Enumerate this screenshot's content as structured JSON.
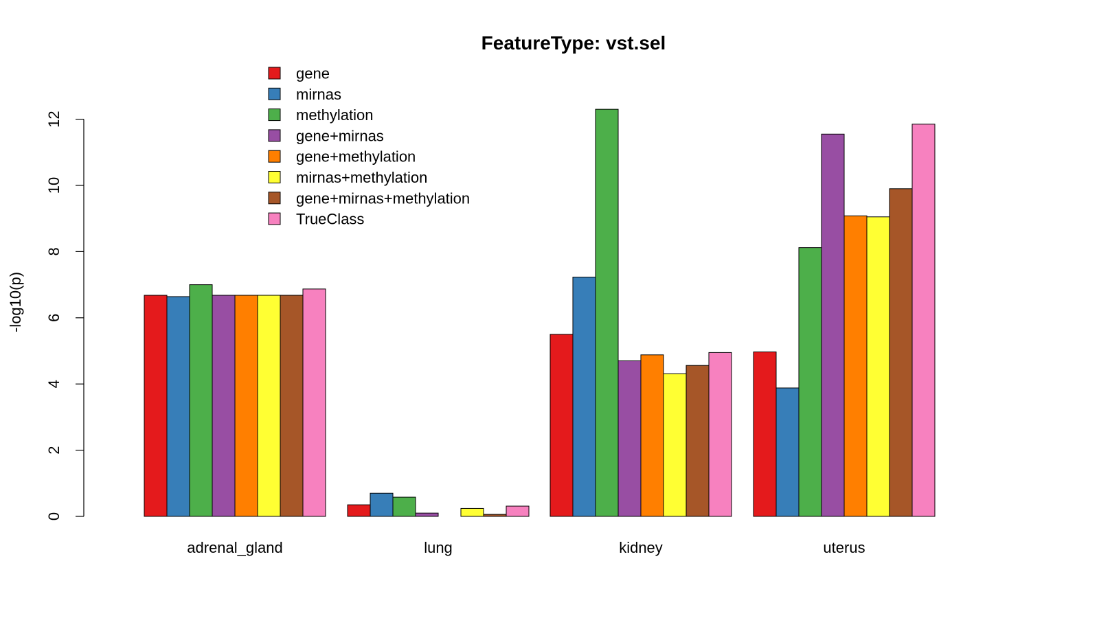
{
  "chart_data": {
    "type": "bar",
    "title": "FeatureType: vst.sel",
    "xlabel": "",
    "ylabel": "-log10(p)",
    "ylim": [
      0,
      12.3
    ],
    "yticks": [
      0,
      2,
      4,
      6,
      8,
      10,
      12
    ],
    "grid": false,
    "legend_position": "top-left",
    "categories": [
      "adrenal_gland",
      "lung",
      "kidney",
      "uterus"
    ],
    "series": [
      {
        "name": "gene",
        "color": "#E41A1C",
        "values": [
          6.68,
          0.35,
          5.5,
          4.97
        ]
      },
      {
        "name": "mirnas",
        "color": "#377EB8",
        "values": [
          6.64,
          0.7,
          7.23,
          3.88
        ]
      },
      {
        "name": "methylation",
        "color": "#4DAF4A",
        "values": [
          7.0,
          0.58,
          12.3,
          8.12
        ]
      },
      {
        "name": "gene+mirnas",
        "color": "#984EA3",
        "values": [
          6.68,
          0.1,
          4.7,
          11.55
        ]
      },
      {
        "name": "gene+methylation",
        "color": "#FF7F00",
        "values": [
          6.68,
          0.0,
          4.88,
          9.08
        ]
      },
      {
        "name": "mirnas+methylation",
        "color": "#FFFF33",
        "values": [
          6.68,
          0.24,
          4.31,
          9.05
        ]
      },
      {
        "name": "gene+mirnas+methylation",
        "color": "#A65628",
        "values": [
          6.68,
          0.06,
          4.56,
          9.9
        ]
      },
      {
        "name": "TrueClass",
        "color": "#F781BF",
        "values": [
          6.87,
          0.31,
          4.95,
          11.85
        ]
      }
    ]
  }
}
